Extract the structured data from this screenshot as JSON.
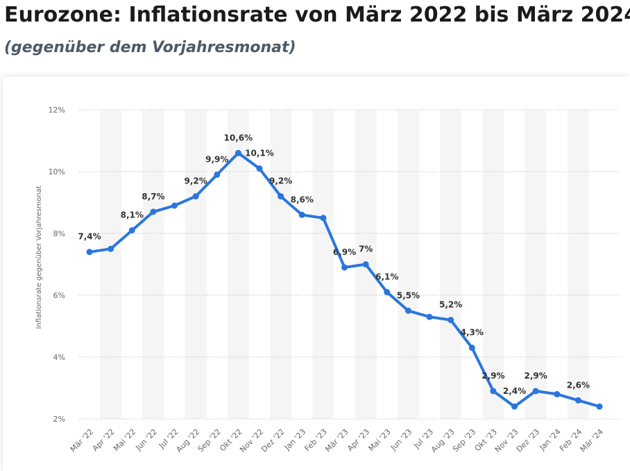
{
  "header": {
    "title": "Eurozone: Inflationsrate von März 2022 bis März 2024",
    "subtitle": "(gegenüber dem Vorjahresmonat)"
  },
  "chart_data": {
    "type": "line",
    "ylabel": "Inflationsrate gegenüber Vorjahresmonat",
    "ylim": [
      2,
      12
    ],
    "yticks": [
      2,
      4,
      6,
      8,
      10,
      12
    ],
    "ytick_labels": [
      "2%",
      "4%",
      "6%",
      "8%",
      "10%",
      "12%"
    ],
    "grid": true,
    "line_color": "#2a76dd",
    "band_color": "#f5f5f5",
    "categories": [
      "Mär '22",
      "Apr '22",
      "Mai '22",
      "Jun '22",
      "Jul '22",
      "Aug '22",
      "Sep '22",
      "Okt '22",
      "Nov '22",
      "Dez '22",
      "Jan '23",
      "Feb '23",
      "Mär '23",
      "Apr '23",
      "Mai '23",
      "Jun '23",
      "Jul '23",
      "Aug '23",
      "Sep '23",
      "Okt '23",
      "Nov '23",
      "Dez '23",
      "Jan '24",
      "Feb '24",
      "Mär '24"
    ],
    "series": [
      {
        "values": [
          7.4,
          7.5,
          8.1,
          8.7,
          8.9,
          9.2,
          9.9,
          10.6,
          10.1,
          9.2,
          8.6,
          8.5,
          6.9,
          7.0,
          6.1,
          5.5,
          5.3,
          5.2,
          4.3,
          2.9,
          2.4,
          2.9,
          2.8,
          2.6,
          2.4
        ],
        "data_labels": [
          "7,4%",
          "",
          "8,1%",
          "8,7%",
          "",
          "9,2%",
          "9,9%",
          "10,6%",
          "10,1%",
          "9,2%",
          "8,6%",
          "",
          "6,9%",
          "7%",
          "6,1%",
          "5,5%",
          "",
          "5,2%",
          "4,3%",
          "2,9%",
          "2,4%",
          "2,9%",
          "",
          "2,6%",
          ""
        ]
      }
    ]
  }
}
